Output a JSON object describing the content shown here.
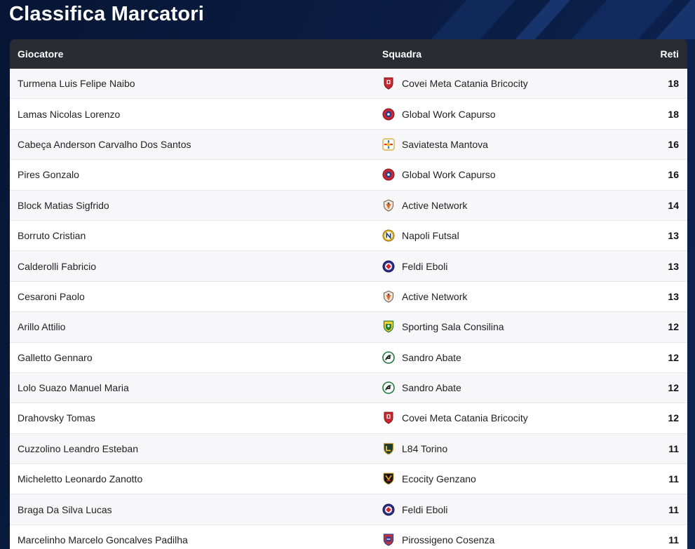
{
  "page": {
    "title": "Classifica Marcatori"
  },
  "table": {
    "headers": {
      "player": "Giocatore",
      "team": "Squadra",
      "goals": "Reti"
    },
    "rows": [
      {
        "player": "Turmena Luis Felipe Naibo",
        "team": "Covei Meta Catania Bricocity",
        "team_logo": "meta-catania-crest-icon",
        "goals": "18"
      },
      {
        "player": "Lamas Nicolas Lorenzo",
        "team": "Global Work Capurso",
        "team_logo": "capurso-crest-icon",
        "goals": "18"
      },
      {
        "player": "Cabeça Anderson Carvalho Dos Santos",
        "team": "Saviatesta Mantova",
        "team_logo": "mantova-crest-icon",
        "goals": "16"
      },
      {
        "player": "Pires Gonzalo",
        "team": "Global Work Capurso",
        "team_logo": "capurso-crest-icon",
        "goals": "16"
      },
      {
        "player": "Block Matias Sigfrido",
        "team": "Active Network",
        "team_logo": "active-network-crest-icon",
        "goals": "14"
      },
      {
        "player": "Borruto Cristian",
        "team": "Napoli Futsal",
        "team_logo": "napoli-futsal-crest-icon",
        "goals": "13"
      },
      {
        "player": "Calderolli Fabricio",
        "team": "Feldi Eboli",
        "team_logo": "feldi-eboli-crest-icon",
        "goals": "13"
      },
      {
        "player": "Cesaroni Paolo",
        "team": "Active Network",
        "team_logo": "active-network-crest-icon",
        "goals": "13"
      },
      {
        "player": "Arillo Attilio",
        "team": "Sporting Sala Consilina",
        "team_logo": "sala-consilina-crest-icon",
        "goals": "12"
      },
      {
        "player": "Galletto Gennaro",
        "team": "Sandro Abate",
        "team_logo": "sandro-abate-crest-icon",
        "goals": "12"
      },
      {
        "player": "Lolo Suazo Manuel Maria",
        "team": "Sandro Abate",
        "team_logo": "sandro-abate-crest-icon",
        "goals": "12"
      },
      {
        "player": "Drahovsky Tomas",
        "team": "Covei Meta Catania Bricocity",
        "team_logo": "meta-catania-crest-icon",
        "goals": "12"
      },
      {
        "player": "Cuzzolino Leandro Esteban",
        "team": "L84 Torino",
        "team_logo": "l84-torino-crest-icon",
        "goals": "11"
      },
      {
        "player": "Micheletto Leonardo Zanotto",
        "team": "Ecocity Genzano",
        "team_logo": "genzano-crest-icon",
        "goals": "11"
      },
      {
        "player": "Braga Da Silva Lucas",
        "team": "Feldi Eboli",
        "team_logo": "feldi-eboli-crest-icon",
        "goals": "11"
      },
      {
        "player": "Marcelinho Marcelo Goncalves Padilha",
        "team": "Pirossigeno Cosenza",
        "team_logo": "cosenza-crest-icon",
        "goals": "11"
      }
    ]
  },
  "colors": {
    "page_background": "#0a1d44",
    "header_background": "#2b2c33",
    "row_odd": "#f7f7f9",
    "row_even": "#ffffff",
    "title_text": "#ffffff"
  }
}
